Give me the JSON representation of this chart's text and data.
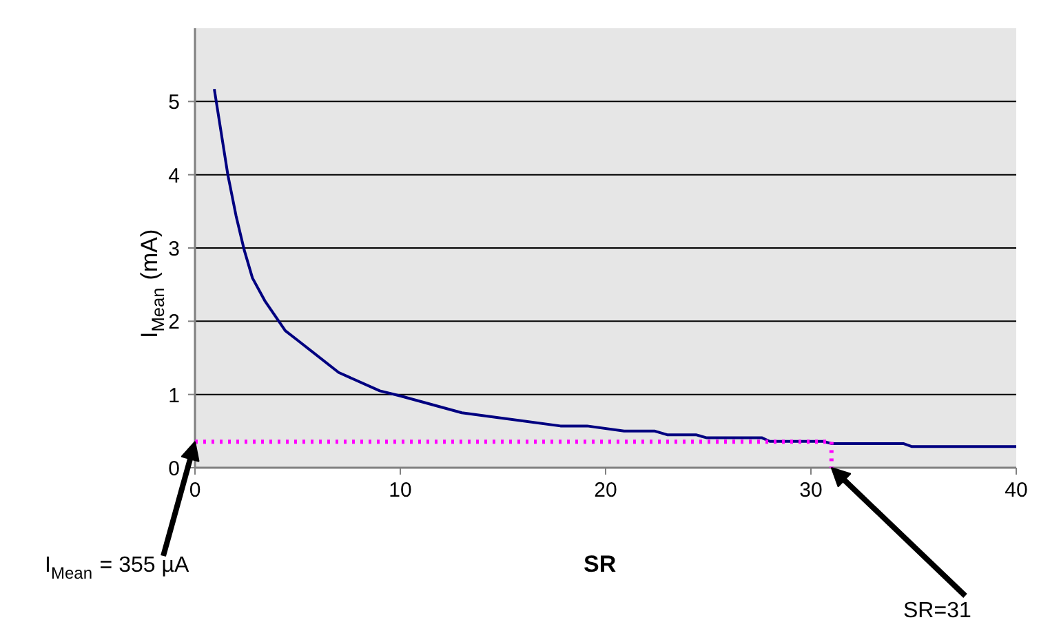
{
  "chart_data": {
    "type": "line",
    "xlabel": "SR",
    "ylabel": "I$_{Mean}$ (mA)",
    "xlim": [
      0,
      40
    ],
    "ylim": [
      0,
      6
    ],
    "xticks": [
      0,
      10,
      20,
      30,
      40
    ],
    "yticks": [
      0,
      1,
      2,
      3,
      4,
      5
    ],
    "grid": "y",
    "series": [
      {
        "color": "#000080",
        "x": [
          0.94,
          1.6,
          2.0,
          2.4,
          2.8,
          3.4,
          4.4,
          5.0,
          7.0,
          9.0,
          10,
          13,
          17.8,
          19.1,
          20.9,
          22.4,
          23,
          24.4,
          24.9,
          27.6,
          28,
          30.6,
          31,
          34.5,
          34.9,
          40
        ],
        "values": [
          5.17,
          4.0,
          3.44,
          2.97,
          2.59,
          2.28,
          1.87,
          1.74,
          1.3,
          1.05,
          0.98,
          0.75,
          0.57,
          0.57,
          0.5,
          0.5,
          0.45,
          0.45,
          0.41,
          0.41,
          0.36,
          0.36,
          0.33,
          0.33,
          0.29,
          0.29
        ]
      },
      {
        "color": "#ff00ff",
        "line_style": "dotted",
        "x": [
          0,
          31,
          31
        ],
        "values": [
          0.355,
          0.355,
          0
        ]
      }
    ],
    "annotations": [
      {
        "text": "I$_{Mean}$ = 355 µA",
        "x": 0,
        "y": 0.355
      },
      {
        "text": "SR=31",
        "x": 31,
        "y": 0
      }
    ]
  }
}
